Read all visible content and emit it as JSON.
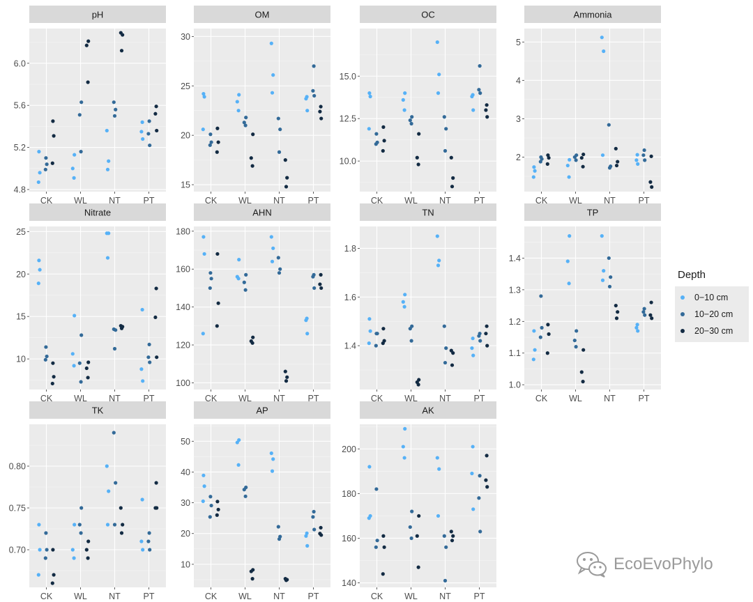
{
  "chart_data": {
    "type": "scatter",
    "facet_wrap": true,
    "grid": true,
    "categories": [
      "CK",
      "WL",
      "NT",
      "PT"
    ],
    "depth_order": [
      "0-10 cm",
      "10-20 cm",
      "20-30 cm"
    ],
    "legend": {
      "title": "Depth",
      "position": "right",
      "items": [
        {
          "label": "0−10 cm",
          "color": "#56B1F7"
        },
        {
          "label": "10−20 cm",
          "color": "#336A98"
        },
        {
          "label": "20−30 cm",
          "color": "#132B43"
        }
      ]
    },
    "panels": [
      {
        "title": "pH",
        "ylim": [
          4.78,
          6.33
        ],
        "ticks": [
          4.8,
          5.2,
          5.6,
          6.0
        ],
        "tick_labels": [
          "4.8",
          "5.2",
          "5.6",
          "6.0"
        ],
        "values": {
          "CK": [
            [
              4.87,
              4.96,
              5.16
            ],
            [
              4.99,
              5.04,
              5.1
            ],
            [
              5.05,
              5.31,
              5.45
            ]
          ],
          "WL": [
            [
              4.91,
              5.0,
              5.13
            ],
            [
              5.16,
              5.51,
              5.63
            ],
            [
              5.82,
              6.17,
              6.21
            ]
          ],
          "NT": [
            [
              4.99,
              5.07,
              5.36
            ],
            [
              5.5,
              5.56,
              5.63
            ],
            [
              6.12,
              6.27,
              6.29
            ]
          ],
          "PT": [
            [
              5.28,
              5.35,
              5.44
            ],
            [
              5.22,
              5.33,
              5.45
            ],
            [
              5.36,
              5.52,
              5.59
            ]
          ]
        }
      },
      {
        "title": "OM",
        "ylim": [
          14.3,
          30.8
        ],
        "ticks": [
          15,
          20,
          25,
          30
        ],
        "tick_labels": [
          "15",
          "20",
          "25",
          "30"
        ],
        "values": {
          "CK": [
            [
              20.6,
              23.9,
              24.2
            ],
            [
              19.0,
              19.3,
              20.1
            ],
            [
              18.3,
              19.3,
              20.7
            ]
          ],
          "WL": [
            [
              22.5,
              23.4,
              24.1
            ],
            [
              21.0,
              21.3,
              21.8
            ],
            [
              16.9,
              17.7,
              20.1
            ]
          ],
          "NT": [
            [
              24.3,
              26.1,
              29.3
            ],
            [
              18.3,
              20.6,
              21.7
            ],
            [
              14.8,
              15.7,
              17.5
            ]
          ],
          "PT": [
            [
              22.5,
              23.7,
              23.9
            ],
            [
              24.0,
              24.5,
              27.0
            ],
            [
              21.7,
              22.4,
              22.9
            ]
          ]
        }
      },
      {
        "title": "OC",
        "ylim": [
          8.2,
          17.8
        ],
        "ticks": [
          10.0,
          12.5,
          15.0
        ],
        "tick_labels": [
          "10.0",
          "12.5",
          "15.0"
        ],
        "values": {
          "CK": [
            [
              11.9,
              13.8,
              14.0
            ],
            [
              11.0,
              11.1,
              11.6
            ],
            [
              10.6,
              11.2,
              12.0
            ]
          ],
          "WL": [
            [
              13.0,
              13.6,
              14.0
            ],
            [
              12.2,
              12.4,
              12.6
            ],
            [
              9.8,
              10.2,
              11.6
            ]
          ],
          "NT": [
            [
              14.0,
              15.1,
              17.0
            ],
            [
              10.6,
              11.9,
              12.6
            ],
            [
              8.5,
              9.0,
              10.2
            ]
          ],
          "PT": [
            [
              13.0,
              13.8,
              13.9
            ],
            [
              14.0,
              14.2,
              15.6
            ],
            [
              12.6,
              13.0,
              13.3
            ]
          ]
        }
      },
      {
        "title": "Ammonia",
        "ylim": [
          1.1,
          5.35
        ],
        "ticks": [
          2,
          3,
          4,
          5
        ],
        "tick_labels": [
          "2",
          "3",
          "4",
          "5"
        ],
        "values": {
          "CK": [
            [
              1.48,
              1.64,
              1.74
            ],
            [
              1.88,
              1.95,
              2.0
            ],
            [
              1.82,
              1.98,
              2.05
            ]
          ],
          "WL": [
            [
              1.48,
              1.78,
              1.93
            ],
            [
              1.92,
              2.0,
              2.05
            ],
            [
              1.75,
              1.98,
              2.07
            ]
          ],
          "NT": [
            [
              2.05,
              4.76,
              5.12
            ],
            [
              1.72,
              1.76,
              2.84
            ],
            [
              1.78,
              1.88,
              2.22
            ]
          ],
          "PT": [
            [
              1.82,
              1.92,
              2.06
            ],
            [
              1.92,
              2.05,
              2.18
            ],
            [
              1.22,
              1.35,
              2.02
            ]
          ]
        }
      },
      {
        "title": "Nitrate",
        "ylim": [
          6.4,
          25.6
        ],
        "ticks": [
          10,
          15,
          20,
          25
        ],
        "tick_labels": [
          "10",
          "15",
          "20",
          "25"
        ],
        "values": {
          "CK": [
            [
              18.9,
              20.5,
              21.6
            ],
            [
              9.9,
              10.3,
              11.4
            ],
            [
              7.1,
              7.9,
              9.5
            ]
          ],
          "WL": [
            [
              9.2,
              10.6,
              15.1
            ],
            [
              7.3,
              9.5,
              12.8
            ],
            [
              7.8,
              8.9,
              9.6
            ]
          ],
          "NT": [
            [
              21.9,
              24.8,
              24.8
            ],
            [
              11.2,
              13.4,
              13.5
            ],
            [
              13.6,
              13.8,
              13.9
            ]
          ],
          "PT": [
            [
              7.4,
              8.8,
              15.8
            ],
            [
              9.6,
              10.2,
              11.7
            ],
            [
              10.2,
              14.9,
              18.3
            ]
          ]
        }
      },
      {
        "title": "AHN",
        "ylim": [
          96.5,
          182.5
        ],
        "ticks": [
          100,
          120,
          140,
          160,
          180
        ],
        "tick_labels": [
          "100",
          "120",
          "140",
          "160",
          "180"
        ],
        "values": {
          "CK": [
            [
              126,
              168,
              177
            ],
            [
              150,
              155,
              158
            ],
            [
              130,
              142,
              168
            ]
          ],
          "WL": [
            [
              155,
              156,
              165
            ],
            [
              149,
              153,
              157
            ],
            [
              121,
              122,
              124
            ]
          ],
          "NT": [
            [
              164,
              171,
              177
            ],
            [
              158,
              160,
              166
            ],
            [
              101,
              103,
              106
            ]
          ],
          "PT": [
            [
              126,
              133,
              134
            ],
            [
              150,
              156,
              157
            ],
            [
              150,
              152,
              157
            ]
          ]
        }
      },
      {
        "title": "TN",
        "ylim": [
          1.22,
          1.89
        ],
        "ticks": [
          1.4,
          1.6,
          1.8
        ],
        "tick_labels": [
          "1.4",
          "1.6",
          "1.8"
        ],
        "values": {
          "CK": [
            [
              1.41,
              1.46,
              1.51
            ],
            [
              1.4,
              1.45,
              1.45
            ],
            [
              1.41,
              1.42,
              1.47
            ]
          ],
          "WL": [
            [
              1.56,
              1.58,
              1.61
            ],
            [
              1.42,
              1.47,
              1.48
            ],
            [
              1.24,
              1.25,
              1.26
            ]
          ],
          "NT": [
            [
              1.73,
              1.75,
              1.85
            ],
            [
              1.33,
              1.39,
              1.48
            ],
            [
              1.32,
              1.37,
              1.38
            ]
          ],
          "PT": [
            [
              1.36,
              1.39,
              1.43
            ],
            [
              1.42,
              1.44,
              1.45
            ],
            [
              1.4,
              1.45,
              1.48
            ]
          ]
        }
      },
      {
        "title": "TP",
        "ylim": [
          0.985,
          1.5
        ],
        "ticks": [
          1.0,
          1.1,
          1.2,
          1.3,
          1.4
        ],
        "tick_labels": [
          "1.0",
          "1.1",
          "1.2",
          "1.3",
          "1.4"
        ],
        "values": {
          "CK": [
            [
              1.08,
              1.11,
              1.17
            ],
            [
              1.15,
              1.18,
              1.28
            ],
            [
              1.1,
              1.16,
              1.19
            ]
          ],
          "WL": [
            [
              1.32,
              1.39,
              1.47
            ],
            [
              1.12,
              1.14,
              1.17
            ],
            [
              1.01,
              1.04,
              1.11
            ]
          ],
          "NT": [
            [
              1.33,
              1.36,
              1.47
            ],
            [
              1.31,
              1.34,
              1.4
            ],
            [
              1.21,
              1.23,
              1.25
            ]
          ],
          "PT": [
            [
              1.17,
              1.18,
              1.19
            ],
            [
              1.22,
              1.23,
              1.24
            ],
            [
              1.21,
              1.22,
              1.26
            ]
          ]
        }
      },
      {
        "title": "TK",
        "ylim": [
          0.655,
          0.85
        ],
        "ticks": [
          0.7,
          0.75,
          0.8
        ],
        "tick_labels": [
          "0.70",
          "0.75",
          "0.80"
        ],
        "values": {
          "CK": [
            [
              0.67,
              0.7,
              0.73
            ],
            [
              0.69,
              0.7,
              0.72
            ],
            [
              0.66,
              0.67,
              0.7
            ]
          ],
          "WL": [
            [
              0.69,
              0.7,
              0.73
            ],
            [
              0.72,
              0.73,
              0.75
            ],
            [
              0.69,
              0.7,
              0.71
            ]
          ],
          "NT": [
            [
              0.73,
              0.77,
              0.8
            ],
            [
              0.73,
              0.78,
              0.84
            ],
            [
              0.72,
              0.73,
              0.75
            ]
          ],
          "PT": [
            [
              0.7,
              0.71,
              0.76
            ],
            [
              0.7,
              0.71,
              0.72
            ],
            [
              0.75,
              0.75,
              0.78
            ]
          ]
        }
      },
      {
        "title": "AP",
        "ylim": [
          2.5,
          55.5
        ],
        "ticks": [
          10,
          20,
          30,
          40,
          50
        ],
        "tick_labels": [
          "10",
          "20",
          "30",
          "40",
          "50"
        ],
        "values": {
          "CK": [
            [
              30.5,
              35.4,
              38.9
            ],
            [
              25.4,
              29.1,
              32.0
            ],
            [
              26.0,
              27.8,
              30.4
            ]
          ],
          "WL": [
            [
              42.3,
              49.6,
              50.4
            ],
            [
              32.1,
              34.3,
              35.0
            ],
            [
              5.3,
              7.7,
              8.2
            ]
          ],
          "NT": [
            [
              40.3,
              44.2,
              46.1
            ],
            [
              18.2,
              19.0,
              22.2
            ],
            [
              4.8,
              5.0,
              5.3
            ]
          ],
          "PT": [
            [
              16.0,
              19.2,
              20.1
            ],
            [
              21.3,
              25.4,
              27.1
            ],
            [
              19.5,
              20.0,
              21.9
            ]
          ]
        }
      },
      {
        "title": "AK",
        "ylim": [
          138,
          211
        ],
        "ticks": [
          140,
          160,
          180,
          200
        ],
        "tick_labels": [
          "140",
          "160",
          "180",
          "200"
        ],
        "values": {
          "CK": [
            [
              169,
              170,
              192
            ],
            [
              156,
              159,
              182
            ],
            [
              144,
              156,
              161
            ]
          ],
          "WL": [
            [
              196,
              201,
              209
            ],
            [
              160,
              165,
              172
            ],
            [
              147,
              161,
              170
            ]
          ],
          "NT": [
            [
              170,
              191,
              196
            ],
            [
              141,
              156,
              161
            ],
            [
              159,
              161,
              163
            ]
          ],
          "PT": [
            [
              173,
              189,
              201
            ],
            [
              163,
              178,
              188
            ],
            [
              183,
              186,
              197
            ]
          ]
        }
      }
    ]
  },
  "watermark": {
    "text": "EcoEvoPhylo",
    "icon": "wechat-icon"
  }
}
